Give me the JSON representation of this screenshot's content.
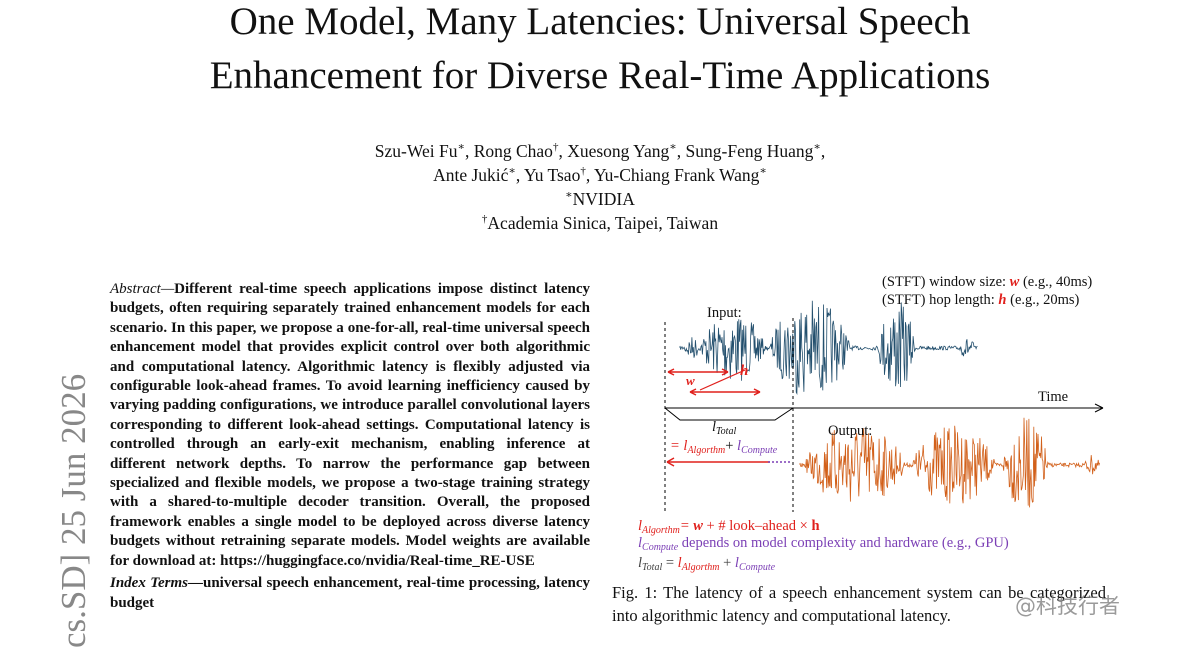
{
  "title_lines": [
    "One Model, Many Latencies: Universal Speech",
    "Enhancement for Diverse Real-Time Applications"
  ],
  "author_lines": [
    [
      {
        "name": "Szu-Wei Fu",
        "mark": "∗",
        "sep": ", "
      },
      {
        "name": "Rong Chao",
        "mark": "†",
        "sep": ", "
      },
      {
        "name": "Xuesong Yang",
        "mark": "∗",
        "sep": ", "
      },
      {
        "name": "Sung-Feng Huang",
        "mark": "∗",
        "sep": ","
      }
    ],
    [
      {
        "name": "Ante Jukić",
        "mark": "∗",
        "sep": ", "
      },
      {
        "name": "Yu Tsao",
        "mark": "†",
        "sep": ", "
      },
      {
        "name": "Yu-Chiang Frank Wang",
        "mark": "∗",
        "sep": ""
      }
    ]
  ],
  "affiliations": [
    {
      "mark": "∗",
      "text": "NVIDIA"
    },
    {
      "mark": "†",
      "text": "Academia Sinica, Taipei, Taiwan"
    }
  ],
  "stamp": "cs.SD]  25 Jun 2026",
  "abstract": {
    "label": "Abstract—",
    "text": "Different real-time speech applications impose distinct latency budgets, often requiring separately trained enhancement models for each scenario. In this paper, we propose a one-for-all, real-time universal speech enhancement model that provides explicit control over both algorithmic and computational latency. Algorithmic latency is flexibly adjusted via configurable look-ahead frames. To avoid learning inefficiency caused by varying padding configurations, we introduce parallel convolutional layers corresponding to different look-ahead settings. Computational latency is controlled through an early-exit mechanism, enabling inference at different network depths. To narrow the performance gap between specialized and flexible models, we propose a two-stage training strategy with a shared-to-multiple decoder transition. Overall, the proposed framework enables a single model to be deployed across diverse latency budgets without retraining separate models. Model weights are available for download at: https://huggingface.co/nvidia/Real-time_RE-USE"
  },
  "index_terms": {
    "label": "Index Terms—",
    "text": "universal speech enhancement, real-time processing, latency budget"
  },
  "figure": {
    "window": {
      "pre": "(STFT) window size: ",
      "sym": "w",
      "post": " (e.g., 40ms)"
    },
    "hop": {
      "pre": "(STFT) hop length: ",
      "sym": "h",
      "post": " (e.g., 20ms)"
    },
    "input": "Input:",
    "output": "Output:",
    "time": "Time",
    "arrow_w": "w",
    "arrow_h": "h",
    "l": "l",
    "total": "Total",
    "algorithm": "Algorthm",
    "compute": "Compute",
    "eq": "=",
    "plus": "+",
    "legend_alg": {
      "eq": "= ",
      "w": "w",
      "mid": " + # look–ahead × ",
      "h": "h"
    },
    "legend_comp": " depends on model complexity and hardware (e.g., GPU)",
    "legend_total": {
      "eq": " = ",
      "plus": " + "
    }
  },
  "caption": "Fig. 1: The latency of a speech enhancement system can be categorized into algorithmic latency and computational latency.",
  "watermark": "@科技行者"
}
